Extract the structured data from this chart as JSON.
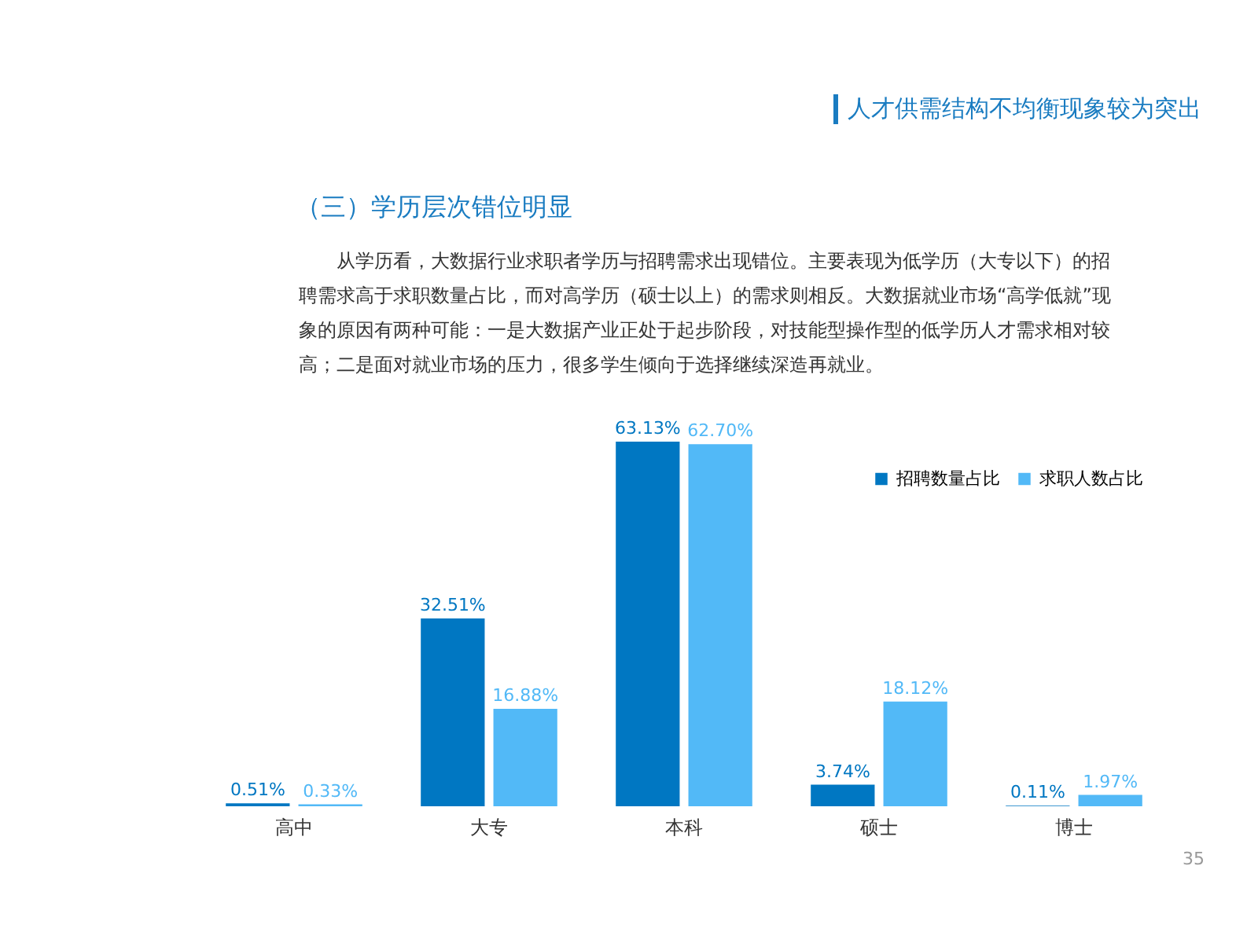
{
  "chart_data": {
    "type": "bar",
    "title": "人才供需结构不均衡现象较为突出",
    "subtitle": "（三）学历层次错位明显",
    "annotations": [
      "从学历看，大数据行业求职者学历与招聘需求出现错位。主要表现为低学历（大专以下）的招聘需求高于求职数量占比，而对高学历（硕士以上）的需求则相反。大数据就业市场“高学低就”现象的原因有两种可能：一是大数据产业正处于起步阶段，对技能型操作型的低学历人才需求相对较高；二是面对就业市场的压力，很多学生倾向于选择继续深造再就业。",
      "35"
    ],
    "categories": [
      "高中",
      "大专",
      "本科",
      "硕士",
      "博士"
    ],
    "series": [
      {
        "name": "招聘数量占比",
        "color": "#0077c2",
        "values": [
          0.51,
          32.51,
          63.13,
          3.74,
          0.11
        ],
        "value_labels": [
          "0.51%",
          "32.51%",
          "63.13%",
          "3.74%",
          "0.11%"
        ]
      },
      {
        "name": "求职人数占比",
        "color": "#52b9f7",
        "values": [
          0.33,
          16.88,
          62.7,
          18.12,
          1.97
        ],
        "value_labels": [
          "0.33%",
          "16.88%",
          "62.70%",
          "18.12%",
          "1.97%"
        ]
      }
    ],
    "legend": "top right"
  }
}
